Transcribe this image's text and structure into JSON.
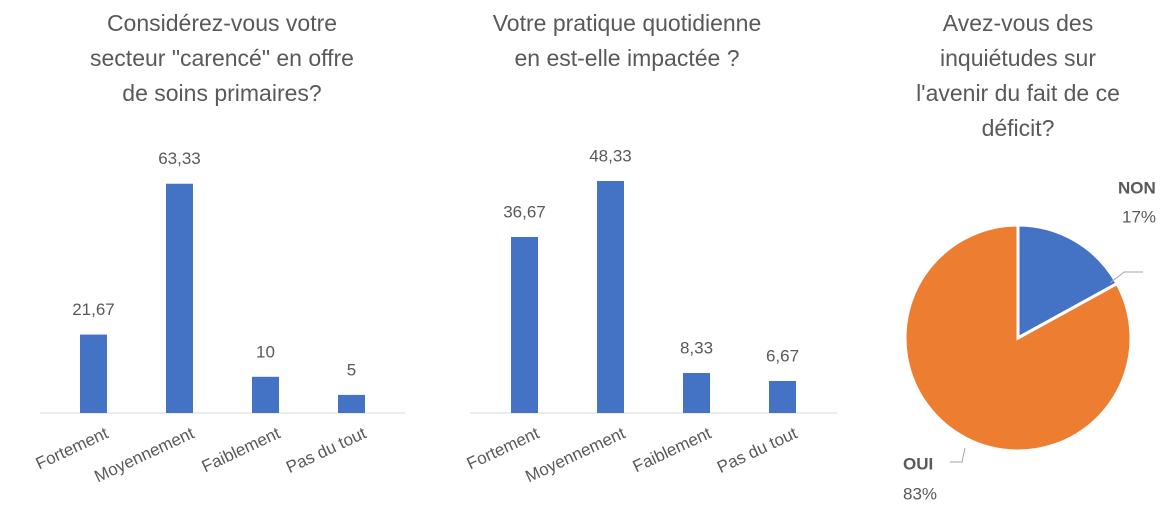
{
  "chart_data": [
    {
      "type": "bar",
      "title": "Considérez-vous votre secteur \"carencé\" en offre de soins primaires?",
      "categories": [
        "Fortement",
        "Moyennement",
        "Faiblement",
        "Pas du tout"
      ],
      "values": [
        21.67,
        63.33,
        10,
        5
      ],
      "value_labels": [
        "21,67",
        "63,33",
        "10",
        "5"
      ],
      "color": "#4472c4"
    },
    {
      "type": "bar",
      "title": "Votre pratique quotidienne en est-elle impactée ?",
      "categories": [
        "Fortement",
        "Moyennement",
        "Faiblement",
        "Pas du tout"
      ],
      "values": [
        36.67,
        48.33,
        8.33,
        6.67
      ],
      "value_labels": [
        "36,67",
        "48,33",
        "8,33",
        "6,67"
      ],
      "color": "#4472c4"
    },
    {
      "type": "pie",
      "title": "Avez-vous des inquiétudes sur l'avenir du fait de ce déficit?",
      "categories": [
        "NON",
        "OUI"
      ],
      "values": [
        17,
        83
      ],
      "value_labels": [
        "17%",
        "83%"
      ],
      "colors": [
        "#4472c4",
        "#ed7d31"
      ]
    }
  ]
}
